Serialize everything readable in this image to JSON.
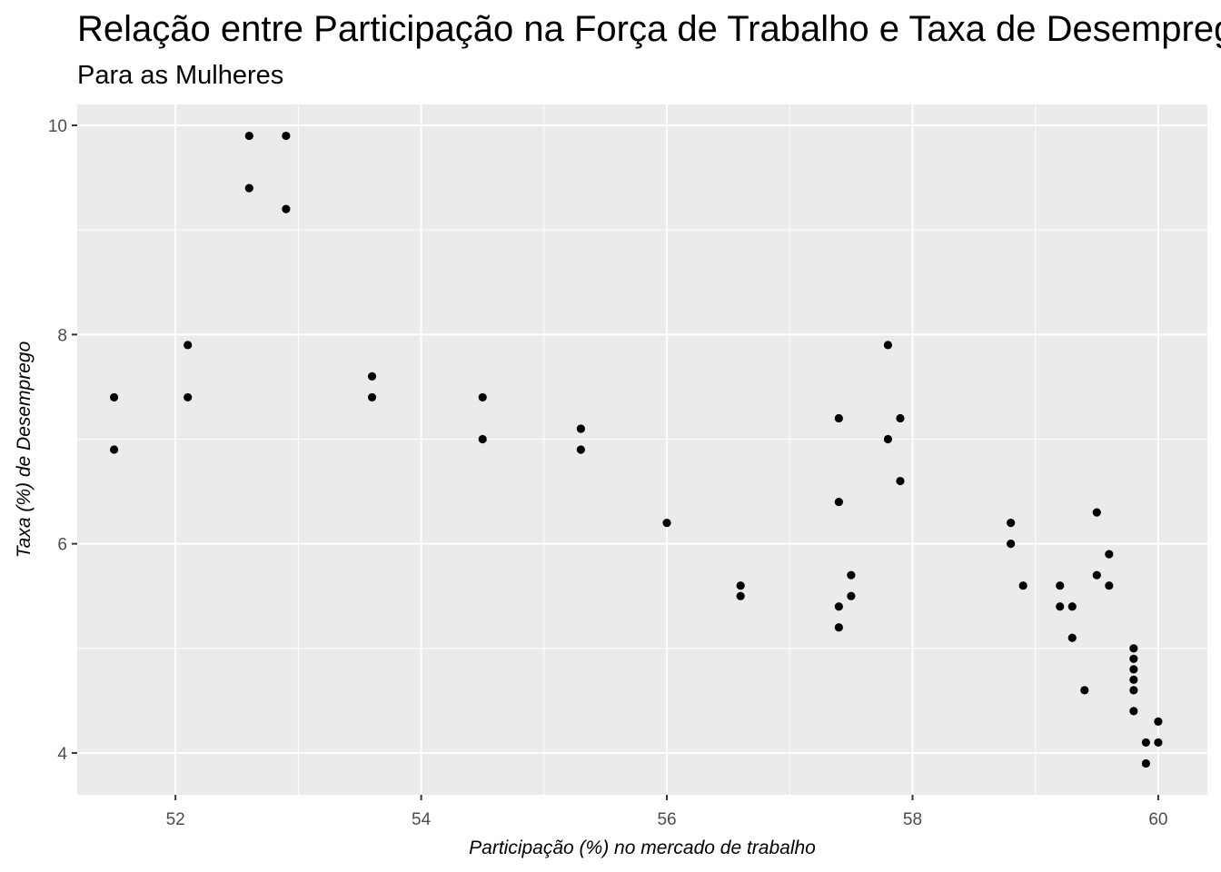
{
  "title": "Relação entre Participação na Força de Trabalho e Taxa de Desemprego",
  "subtitle": "Para as Mulheres",
  "chart_data": {
    "type": "scatter",
    "title": "Relação entre Participação na Força de Trabalho e Taxa de Desemprego",
    "subtitle": "Para as Mulheres",
    "xlabel": "Participação (%) no mercado de trabalho",
    "ylabel": "Taxa (%) de Desemprego",
    "xlim": [
      51.2,
      60.4
    ],
    "ylim": [
      3.6,
      10.2
    ],
    "x_ticks": [
      52,
      54,
      56,
      58,
      60
    ],
    "y_ticks": [
      4,
      6,
      8,
      10
    ],
    "grid": true,
    "legend": "none",
    "colors": {
      "panel": "#ebebeb",
      "grid_major": "#ffffff",
      "point": "#000000"
    },
    "points": [
      {
        "x": 51.5,
        "y": 7.4
      },
      {
        "x": 51.5,
        "y": 6.9
      },
      {
        "x": 52.1,
        "y": 7.9
      },
      {
        "x": 52.1,
        "y": 7.4
      },
      {
        "x": 52.6,
        "y": 9.9
      },
      {
        "x": 52.6,
        "y": 9.4
      },
      {
        "x": 52.9,
        "y": 9.9
      },
      {
        "x": 52.9,
        "y": 9.2
      },
      {
        "x": 53.6,
        "y": 7.6
      },
      {
        "x": 53.6,
        "y": 7.4
      },
      {
        "x": 54.5,
        "y": 7.4
      },
      {
        "x": 54.5,
        "y": 7.0
      },
      {
        "x": 55.3,
        "y": 7.1
      },
      {
        "x": 55.3,
        "y": 6.9
      },
      {
        "x": 56.0,
        "y": 6.2
      },
      {
        "x": 56.6,
        "y": 5.6
      },
      {
        "x": 56.6,
        "y": 5.5
      },
      {
        "x": 57.4,
        "y": 7.2
      },
      {
        "x": 57.4,
        "y": 6.4
      },
      {
        "x": 57.4,
        "y": 5.4
      },
      {
        "x": 57.4,
        "y": 5.2
      },
      {
        "x": 57.5,
        "y": 5.7
      },
      {
        "x": 57.5,
        "y": 5.5
      },
      {
        "x": 57.8,
        "y": 7.9
      },
      {
        "x": 57.8,
        "y": 7.0
      },
      {
        "x": 57.9,
        "y": 7.2
      },
      {
        "x": 57.9,
        "y": 6.6
      },
      {
        "x": 58.8,
        "y": 6.2
      },
      {
        "x": 58.8,
        "y": 6.0
      },
      {
        "x": 58.9,
        "y": 5.6
      },
      {
        "x": 59.2,
        "y": 5.6
      },
      {
        "x": 59.2,
        "y": 5.4
      },
      {
        "x": 59.3,
        "y": 5.4
      },
      {
        "x": 59.3,
        "y": 5.1
      },
      {
        "x": 59.4,
        "y": 4.6
      },
      {
        "x": 59.5,
        "y": 6.3
      },
      {
        "x": 59.5,
        "y": 5.7
      },
      {
        "x": 59.6,
        "y": 5.9
      },
      {
        "x": 59.6,
        "y": 5.6
      },
      {
        "x": 59.8,
        "y": 5.0
      },
      {
        "x": 59.8,
        "y": 4.9
      },
      {
        "x": 59.8,
        "y": 4.8
      },
      {
        "x": 59.8,
        "y": 4.7
      },
      {
        "x": 59.8,
        "y": 4.6
      },
      {
        "x": 59.8,
        "y": 4.4
      },
      {
        "x": 59.9,
        "y": 4.1
      },
      {
        "x": 59.9,
        "y": 3.9
      },
      {
        "x": 60.0,
        "y": 4.3
      },
      {
        "x": 60.0,
        "y": 4.1
      }
    ]
  }
}
